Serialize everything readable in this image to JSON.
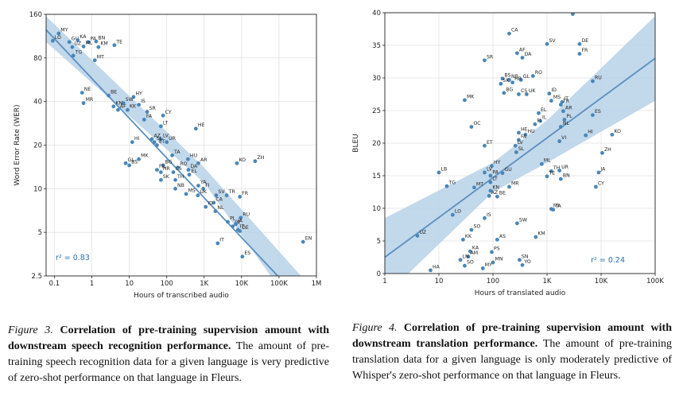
{
  "chart_data": [
    {
      "type": "scatter",
      "title": "",
      "xlabel": "Hours of transcribed audio",
      "ylabel": "Word Error Rate (WER)",
      "x_scale": "log",
      "y_scale": "log",
      "xlim": [
        0.06,
        1000000
      ],
      "ylim": [
        2.5,
        160
      ],
      "x_ticks": [
        0.1,
        1,
        10,
        100,
        1000,
        10000,
        100000,
        1000000
      ],
      "x_tick_labels": [
        "0.1",
        "1",
        "10",
        "100",
        "1K",
        "10K",
        "100K",
        "1M"
      ],
      "y_ticks": [
        2.5,
        5,
        10,
        20,
        40,
        80,
        160
      ],
      "y_tick_labels": [
        "2.5",
        "5",
        "10",
        "20",
        "40",
        "80",
        "160"
      ],
      "grid": true,
      "annotation": "r² = 0.83",
      "fit_line": [
        [
          0.06,
          125
        ],
        [
          1000000,
          1.3
        ]
      ],
      "band": {
        "upper": [
          [
            0.06,
            155
          ],
          [
            1000,
            14
          ],
          [
            1000000,
            1.9
          ]
        ],
        "lower": [
          [
            0.06,
            103
          ],
          [
            1000,
            11
          ],
          [
            1000000,
            0.9
          ]
        ]
      },
      "points": [
        {
          "label": "MY",
          "x": 0.13,
          "y": 118
        },
        {
          "label": "LO",
          "x": 0.09,
          "y": 105
        },
        {
          "label": "GU",
          "x": 0.25,
          "y": 103
        },
        {
          "label": "KA",
          "x": 0.42,
          "y": 106
        },
        {
          "label": "PA",
          "x": 0.8,
          "y": 103
        },
        {
          "label": "BN",
          "x": 1.3,
          "y": 104
        },
        {
          "label": "TE",
          "x": 4,
          "y": 98
        },
        {
          "label": "UZ",
          "x": 0.3,
          "y": 95
        },
        {
          "label": "ML",
          "x": 0.6,
          "y": 96
        },
        {
          "label": "KM",
          "x": 1.5,
          "y": 95
        },
        {
          "label": "TG",
          "x": 0.32,
          "y": 83
        },
        {
          "label": "MT",
          "x": 1.2,
          "y": 77
        },
        {
          "label": "NE",
          "x": 0.55,
          "y": 46
        },
        {
          "label": "MR",
          "x": 0.6,
          "y": 39
        },
        {
          "label": "BE",
          "x": 2.8,
          "y": 44
        },
        {
          "label": "HY",
          "x": 13,
          "y": 43
        },
        {
          "label": "SW",
          "x": 7,
          "y": 39
        },
        {
          "label": "IS",
          "x": 18,
          "y": 38
        },
        {
          "label": "KN",
          "x": 3.8,
          "y": 37
        },
        {
          "label": "AF",
          "x": 5,
          "y": 35
        },
        {
          "label": "KK",
          "x": 9,
          "y": 35
        },
        {
          "label": "SR",
          "x": 30,
          "y": 34
        },
        {
          "label": "CY",
          "x": 80,
          "y": 32
        },
        {
          "label": "FA",
          "x": 25,
          "y": 30
        },
        {
          "label": "LT",
          "x": 70,
          "y": 27
        },
        {
          "label": "HE",
          "x": 600,
          "y": 26
        },
        {
          "label": "AZ",
          "x": 40,
          "y": 22
        },
        {
          "label": "LV",
          "x": 70,
          "y": 22
        },
        {
          "label": "SL",
          "x": 47,
          "y": 21
        },
        {
          "label": "UR",
          "x": 100,
          "y": 21
        },
        {
          "label": "ET",
          "x": 55,
          "y": 20
        },
        {
          "label": "HI",
          "x": 12,
          "y": 21
        },
        {
          "label": "TA",
          "x": 140,
          "y": 17
        },
        {
          "label": "HU",
          "x": 370,
          "y": 16
        },
        {
          "label": "AR",
          "x": 700,
          "y": 15
        },
        {
          "label": "MK",
          "x": 18,
          "y": 16
        },
        {
          "label": "GL",
          "x": 8,
          "y": 15
        },
        {
          "label": "BS",
          "x": 10,
          "y": 14.5
        },
        {
          "label": "BG",
          "x": 80,
          "y": 14.5
        },
        {
          "label": "RO",
          "x": 200,
          "y": 14
        },
        {
          "label": "DA",
          "x": 380,
          "y": 13.5
        },
        {
          "label": "FIL",
          "x": 55,
          "y": 13.5
        },
        {
          "label": "HR",
          "x": 70,
          "y": 13
        },
        {
          "label": "CS",
          "x": 150,
          "y": 13
        },
        {
          "label": "EL",
          "x": 400,
          "y": 12.5
        },
        {
          "label": "SK",
          "x": 70,
          "y": 11.5
        },
        {
          "label": "TH",
          "x": 170,
          "y": 11.5
        },
        {
          "label": "YA",
          "x": 700,
          "y": 10.5
        },
        {
          "label": "FI",
          "x": 950,
          "y": 10
        },
        {
          "label": "NB",
          "x": 170,
          "y": 10
        },
        {
          "label": "MS",
          "x": 330,
          "y": 9.2
        },
        {
          "label": "UK",
          "x": 680,
          "y": 9
        },
        {
          "label": "SV",
          "x": 2100,
          "y": 9
        },
        {
          "label": "TR",
          "x": 4000,
          "y": 9
        },
        {
          "label": "FR",
          "x": 9000,
          "y": 8.8
        },
        {
          "label": "CA",
          "x": 1800,
          "y": 8
        },
        {
          "label": "ID",
          "x": 1100,
          "y": 7.5
        },
        {
          "label": "NL",
          "x": 2000,
          "y": 7
        },
        {
          "label": "RU",
          "x": 9500,
          "y": 6.3
        },
        {
          "label": "PL",
          "x": 4300,
          "y": 5.9
        },
        {
          "label": "PT",
          "x": 5800,
          "y": 5.5
        },
        {
          "label": "JA",
          "x": 7000,
          "y": 5.7
        },
        {
          "label": "IT",
          "x": 8000,
          "y": 5.2
        },
        {
          "label": "DE",
          "x": 9000,
          "y": 5.1
        },
        {
          "label": "KO",
          "x": 7500,
          "y": 15
        },
        {
          "label": "ZH",
          "x": 23000,
          "y": 15.5
        },
        {
          "label": "IT",
          "x": 2300,
          "y": 4.2
        },
        {
          "label": "ES",
          "x": 10500,
          "y": 3.4
        },
        {
          "label": "EN",
          "x": 440000,
          "y": 4.3
        }
      ]
    },
    {
      "type": "scatter",
      "title": "",
      "xlabel": "Hours of translated audio",
      "ylabel": "BLEU",
      "x_scale": "log",
      "y_scale": "linear",
      "xlim": [
        1,
        100000
      ],
      "ylim": [
        0,
        40
      ],
      "x_ticks": [
        1,
        10,
        100,
        1000,
        10000,
        100000
      ],
      "x_tick_labels": [
        "1",
        "10",
        "100",
        "1K",
        "10K",
        "100K"
      ],
      "y_ticks": [
        0,
        5,
        10,
        15,
        20,
        25,
        30,
        35,
        40
      ],
      "y_tick_labels": [
        "0",
        "5",
        "10",
        "15",
        "20",
        "25",
        "30",
        "35",
        "40"
      ],
      "grid": true,
      "annotation": "r² = 0.24",
      "fit_line": [
        [
          1,
          2.5
        ],
        [
          100000,
          33
        ]
      ],
      "band": {
        "upper": [
          [
            1,
            8.5
          ],
          [
            100,
            17
          ],
          [
            1000,
            23.5
          ],
          [
            100000,
            39.5
          ]
        ],
        "lower": [
          [
            1,
            -3.5
          ],
          [
            100,
            12.5
          ],
          [
            1000,
            17
          ],
          [
            100000,
            26.5
          ]
        ]
      },
      "points": [
        {
          "label": "PT",
          "x": 3000,
          "y": 39.8
        },
        {
          "label": "CA",
          "x": 200,
          "y": 36.8
        },
        {
          "label": "SV",
          "x": 1000,
          "y": 35.2
        },
        {
          "label": "DE",
          "x": 4000,
          "y": 35.2
        },
        {
          "label": "AF",
          "x": 280,
          "y": 33.8
        },
        {
          "label": "FR",
          "x": 4000,
          "y": 33.7
        },
        {
          "label": "DA",
          "x": 350,
          "y": 33.1
        },
        {
          "label": "SR",
          "x": 70,
          "y": 32.7
        },
        {
          "label": "RO",
          "x": 550,
          "y": 30.3
        },
        {
          "label": "BS",
          "x": 150,
          "y": 29.9
        },
        {
          "label": "NB",
          "x": 200,
          "y": 29.7
        },
        {
          "label": "GL",
          "x": 330,
          "y": 29.7
        },
        {
          "label": "RU",
          "x": 7000,
          "y": 29.5
        },
        {
          "label": "SK",
          "x": 140,
          "y": 29.1
        },
        {
          "label": "HR",
          "x": 230,
          "y": 29.3
        },
        {
          "label": "BG",
          "x": 160,
          "y": 27.7
        },
        {
          "label": "CS",
          "x": 300,
          "y": 27.5
        },
        {
          "label": "UK",
          "x": 420,
          "y": 27.5
        },
        {
          "label": "ID",
          "x": 1100,
          "y": 27.6
        },
        {
          "label": "MK",
          "x": 30,
          "y": 26.6
        },
        {
          "label": "MS",
          "x": 1200,
          "y": 26.5
        },
        {
          "label": "IT",
          "x": 1900,
          "y": 26.3
        },
        {
          "label": "TR",
          "x": 1800,
          "y": 25.9
        },
        {
          "label": "AR",
          "x": 2000,
          "y": 24.9
        },
        {
          "label": "EL",
          "x": 700,
          "y": 24.6
        },
        {
          "label": "ES",
          "x": 7000,
          "y": 24.3
        },
        {
          "label": "PL",
          "x": 2100,
          "y": 23.6
        },
        {
          "label": "IL",
          "x": 750,
          "y": 23.4
        },
        {
          "label": "FI",
          "x": 600,
          "y": 22.9
        },
        {
          "label": "NL",
          "x": 1800,
          "y": 22.5
        },
        {
          "label": "OC",
          "x": 40,
          "y": 22.5
        },
        {
          "label": "HE",
          "x": 300,
          "y": 21.6
        },
        {
          "label": "HU",
          "x": 400,
          "y": 21.3
        },
        {
          "label": "HI",
          "x": 5200,
          "y": 21.2
        },
        {
          "label": "KO",
          "x": 16000,
          "y": 21.3
        },
        {
          "label": "FA",
          "x": 300,
          "y": 20.5
        },
        {
          "label": "VI",
          "x": 1700,
          "y": 20.3
        },
        {
          "label": "ET",
          "x": 70,
          "y": 19.6
        },
        {
          "label": "LV",
          "x": 260,
          "y": 19.6
        },
        {
          "label": "ZH",
          "x": 10500,
          "y": 18.5
        },
        {
          "label": "SL",
          "x": 270,
          "y": 18.6
        },
        {
          "label": "ML",
          "x": 800,
          "y": 16.8
        },
        {
          "label": "HY",
          "x": 95,
          "y": 16.5
        },
        {
          "label": "LB",
          "x": 10,
          "y": 15.5
        },
        {
          "label": "LV",
          "x": 70,
          "y": 15.5
        },
        {
          "label": "GU",
          "x": 150,
          "y": 15.4
        },
        {
          "label": "TH",
          "x": 1200,
          "y": 15.7
        },
        {
          "label": "UR",
          "x": 1700,
          "y": 15.8
        },
        {
          "label": "JA",
          "x": 9000,
          "y": 15.5
        },
        {
          "label": "PA",
          "x": 90,
          "y": 15
        },
        {
          "label": "TE",
          "x": 1000,
          "y": 14.9
        },
        {
          "label": "BN",
          "x": 1800,
          "y": 14.5
        },
        {
          "label": "LT",
          "x": 90,
          "y": 14
        },
        {
          "label": "TG",
          "x": 14,
          "y": 13.4
        },
        {
          "label": "MT",
          "x": 45,
          "y": 13.2
        },
        {
          "label": "MR",
          "x": 200,
          "y": 13.3
        },
        {
          "label": "CY",
          "x": 8000,
          "y": 13.3
        },
        {
          "label": "KN",
          "x": 90,
          "y": 12.7
        },
        {
          "label": "AZ",
          "x": 85,
          "y": 11.9
        },
        {
          "label": "BE",
          "x": 120,
          "y": 11.8
        },
        {
          "label": "MI",
          "x": 1200,
          "y": 9.9
        },
        {
          "label": "TA",
          "x": 1300,
          "y": 9.8
        },
        {
          "label": "LO",
          "x": 18,
          "y": 9
        },
        {
          "label": "IS",
          "x": 70,
          "y": 8.5
        },
        {
          "label": "SW",
          "x": 280,
          "y": 7.7
        },
        {
          "label": "SO",
          "x": 40,
          "y": 6.7
        },
        {
          "label": "UZ",
          "x": 4,
          "y": 5.8
        },
        {
          "label": "KM",
          "x": 620,
          "y": 5.6
        },
        {
          "label": "KK",
          "x": 28,
          "y": 5.2
        },
        {
          "label": "AS",
          "x": 120,
          "y": 5.2
        },
        {
          "label": "KA",
          "x": 38,
          "y": 3.4
        },
        {
          "label": "PS",
          "x": 95,
          "y": 3.3
        },
        {
          "label": "AM",
          "x": 35,
          "y": 2.6
        },
        {
          "label": "LN",
          "x": 25,
          "y": 2.1
        },
        {
          "label": "SN",
          "x": 310,
          "y": 2.1
        },
        {
          "label": "MN",
          "x": 100,
          "y": 1.7
        },
        {
          "label": "SO",
          "x": 30,
          "y": 1.2
        },
        {
          "label": "YO",
          "x": 350,
          "y": 1.3
        },
        {
          "label": "MY",
          "x": 65,
          "y": 0.8
        },
        {
          "label": "HA",
          "x": 7,
          "y": 0.5
        }
      ]
    }
  ],
  "captions": [
    {
      "fig": "Figure 3.",
      "title": "Correlation of pre-training supervision amount with downstream speech recognition performance.",
      "body": "The amount of pre-training speech recognition data for a given language is very predictive of zero-shot performance on that language in Fleurs."
    },
    {
      "fig": "Figure 4.",
      "title": "Correlation of pre-training supervision amount with downstream translation performance.",
      "body": "The amount of pre-training translation data for a given language is only moderately predictive of Whisper's zero-shot performance on that language in Fleurs."
    }
  ],
  "colors": {
    "point": "#4a86b8",
    "line": "#5b8fc0",
    "band": "#b7d1e8",
    "grid": "#e2e2e2",
    "annotation": "#2f6faa"
  }
}
